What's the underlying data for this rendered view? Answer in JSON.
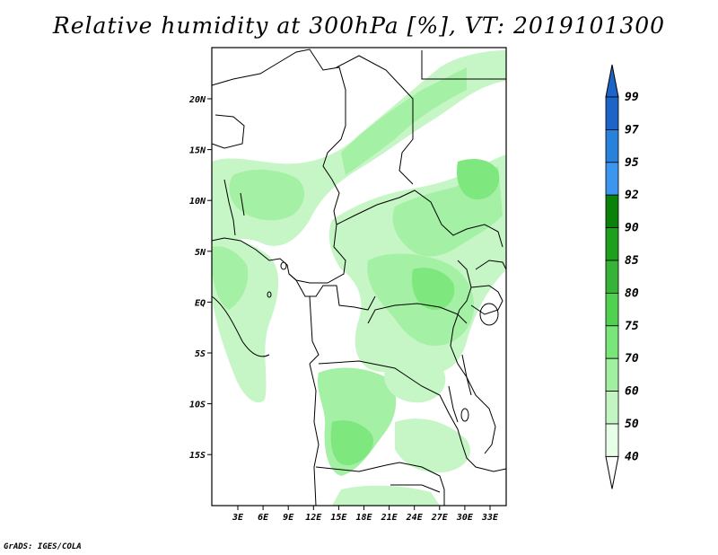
{
  "title": "Relative humidity at 300hPa [%], VT: 2019101300",
  "credit": "GrADS: IGES/COLA",
  "map": {
    "lon_range": [
      0,
      35
    ],
    "lat_range": [
      -20,
      24
    ],
    "lat_ticks": [
      "20N",
      "15N",
      "10N",
      "5N",
      "EQ",
      "5S",
      "10S",
      "15S"
    ],
    "lon_ticks": [
      "3E",
      "6E",
      "9E",
      "12E",
      "15E",
      "18E",
      "21E",
      "24E",
      "27E",
      "30E",
      "33E"
    ]
  },
  "colorbar": {
    "labels": [
      "99",
      "97",
      "95",
      "92",
      "90",
      "85",
      "80",
      "75",
      "70",
      "60",
      "50",
      "40"
    ],
    "colors": [
      "#1e64c8",
      "#2882dc",
      "#3c96f0",
      "#0a820a",
      "#1ea01e",
      "#37b437",
      "#50d250",
      "#78e678",
      "#a0f0a0",
      "#c3f5c3",
      "#e6ffe6"
    ]
  }
}
